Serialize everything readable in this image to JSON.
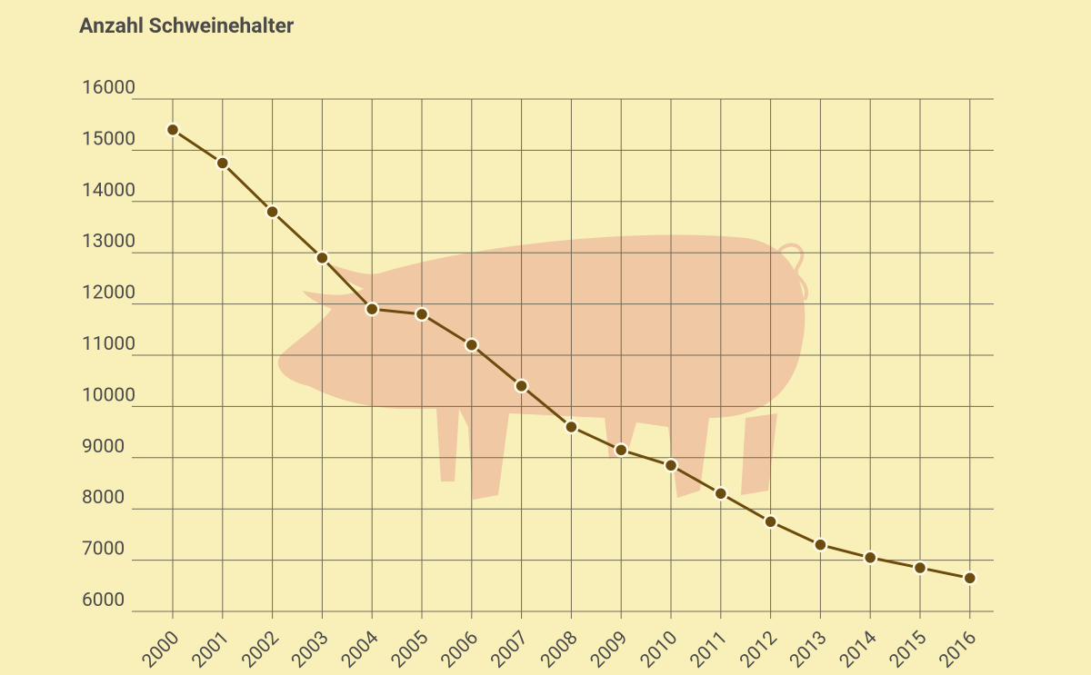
{
  "chart_data": {
    "type": "line",
    "title": "Anzahl Schweinehalter",
    "categories": [
      "2000",
      "2001",
      "2002",
      "2003",
      "2004",
      "2005",
      "2006",
      "2007",
      "2008",
      "2009",
      "2010",
      "2011",
      "2012",
      "2013",
      "2014",
      "2015",
      "2016"
    ],
    "values": [
      15400,
      14750,
      13800,
      12900,
      11900,
      11800,
      11200,
      10400,
      9600,
      9150,
      8850,
      8300,
      7750,
      7300,
      7050,
      6850,
      6650
    ],
    "color": "#6b4c0e",
    "ylim": [
      6000,
      16000
    ],
    "yticks": [
      6000,
      7000,
      8000,
      9000,
      10000,
      11000,
      12000,
      13000,
      14000,
      15000,
      16000
    ],
    "grid": true
  }
}
